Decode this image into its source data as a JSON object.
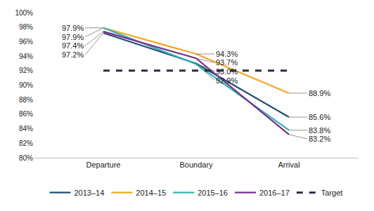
{
  "chart_data": {
    "type": "line",
    "categories": [
      "Departure",
      "Boundary",
      "Arrival"
    ],
    "ylim": [
      80,
      100
    ],
    "yticks": [
      {
        "value": 80,
        "label": "80%"
      },
      {
        "value": 82,
        "label": "82%"
      },
      {
        "value": 84,
        "label": "84%"
      },
      {
        "value": 86,
        "label": "86%"
      },
      {
        "value": 88,
        "label": "88%"
      },
      {
        "value": 90,
        "label": "90%"
      },
      {
        "value": 92,
        "label": "92%"
      },
      {
        "value": 94,
        "label": "94%"
      },
      {
        "value": 96,
        "label": "96%"
      },
      {
        "value": 98,
        "label": "98%"
      },
      {
        "value": 100,
        "label": "100%"
      }
    ],
    "grid": false,
    "legend": "bottom",
    "data_labels": true,
    "series": [
      {
        "name": "2013–14",
        "color": "#1f4e79",
        "line_style": "solid",
        "values": [
          97.2,
          93.0,
          85.6
        ],
        "value_labels": [
          "97.2%",
          "93.0%",
          "85.6%"
        ]
      },
      {
        "name": "2014–15",
        "color": "#f5a623",
        "line_style": "solid",
        "values": [
          97.9,
          94.3,
          88.9
        ],
        "value_labels": [
          "97.9%",
          "94.3%",
          "88.9%"
        ]
      },
      {
        "name": "2015–16",
        "color": "#2bb5b0",
        "line_style": "solid",
        "values": [
          97.9,
          92.9,
          83.8
        ],
        "value_labels": [
          "97.9%",
          "92.9%",
          "83.8%"
        ]
      },
      {
        "name": "2016–17",
        "color": "#7b2d8e",
        "line_style": "solid",
        "values": [
          97.4,
          93.7,
          83.2
        ],
        "value_labels": [
          "97.4%",
          "93.7%",
          "83.2%"
        ]
      },
      {
        "name": "Target",
        "color": "#2b2b45",
        "line_style": "dash",
        "values": [
          92,
          92,
          92
        ]
      }
    ]
  }
}
